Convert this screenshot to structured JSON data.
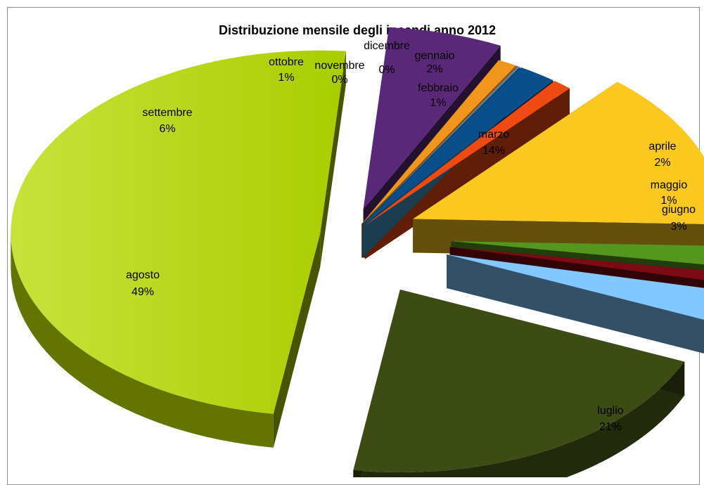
{
  "chart_data": {
    "type": "pie",
    "title": "Distribuzione mensile degli incendi anno 2012",
    "slices": [
      {
        "name": "gennaio",
        "value": 2,
        "label": "gennaio",
        "pct": "2%",
        "color": "#0a4f8c"
      },
      {
        "name": "febbraio",
        "value": 1,
        "label": "febbraio",
        "pct": "1%",
        "color": "#f04a14"
      },
      {
        "name": "marzo",
        "value": 14,
        "label": "marzo",
        "pct": "14%",
        "color": "#fac81e"
      },
      {
        "name": "aprile",
        "value": 2,
        "label": "aprile",
        "pct": "2%",
        "color": "#55961e"
      },
      {
        "name": "maggio",
        "value": 1,
        "label": "maggio",
        "pct": "1%",
        "color": "#7a0a14"
      },
      {
        "name": "giugno",
        "value": 3,
        "label": "giugno",
        "pct": "3%",
        "color": "#82c8ff"
      },
      {
        "name": "luglio",
        "value": 21,
        "label": "luglio",
        "pct": "21%",
        "color": "#3c4c14"
      },
      {
        "name": "agosto",
        "value": 49,
        "label": "agosto",
        "pct": "49%",
        "color": "#b4d200"
      },
      {
        "name": "settembre",
        "value": 6,
        "label": "settembre",
        "pct": "6%",
        "color": "#5a2878"
      },
      {
        "name": "ottobre",
        "value": 1,
        "label": "ottobre",
        "pct": "1%",
        "color": "#f0961e"
      },
      {
        "name": "novembre",
        "value": 0,
        "label": "novembre",
        "pct": "0%",
        "color": "#a05a28"
      },
      {
        "name": "dicembre",
        "value": 0,
        "label": "dicembre",
        "pct": "0%",
        "color": "#4696c8"
      }
    ],
    "legend": "none",
    "style": "exploded 3D pie"
  }
}
